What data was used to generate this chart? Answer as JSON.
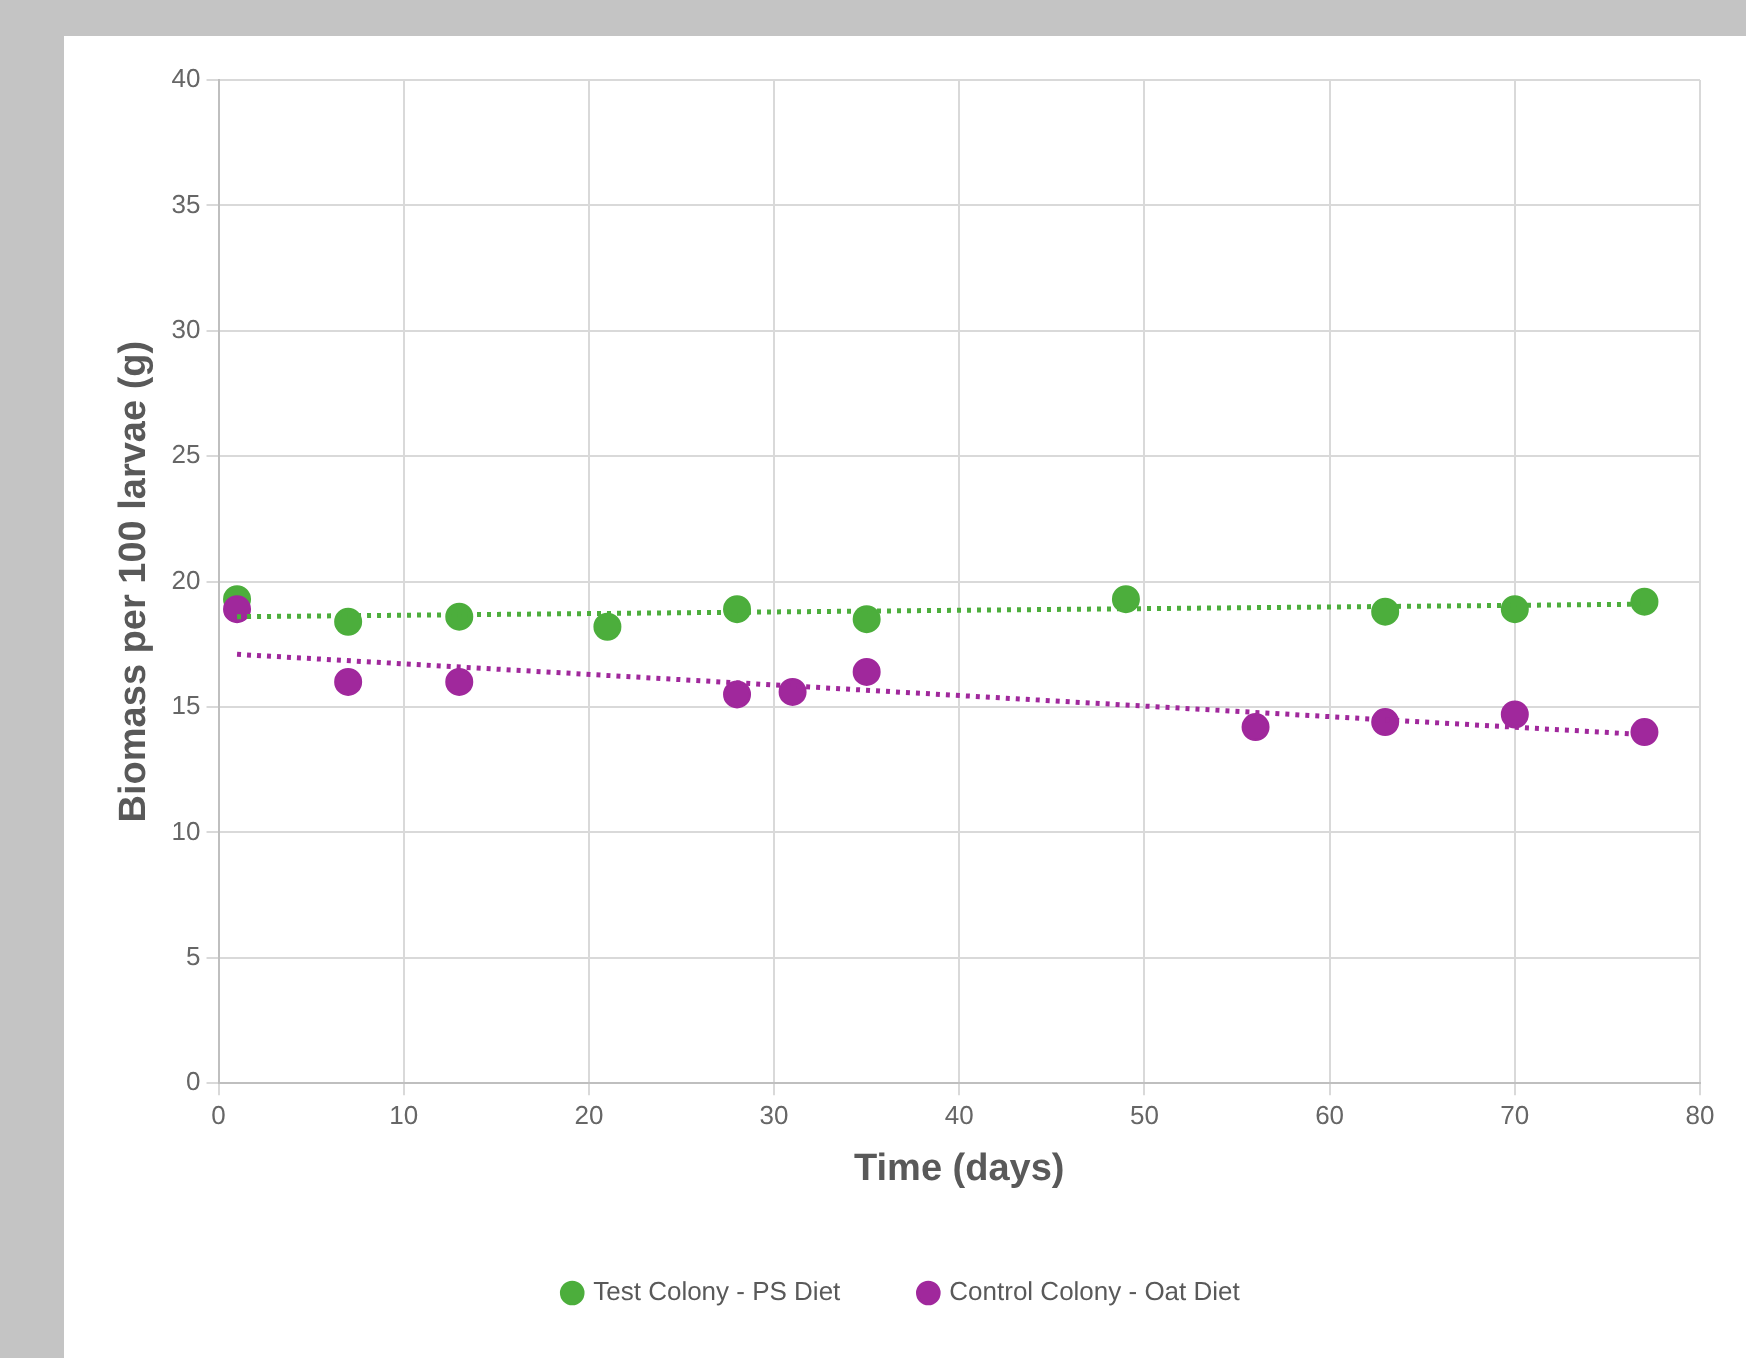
{
  "chart_data": {
    "type": "scatter",
    "xlabel": "Time (days)",
    "ylabel": "Biomass per 100 larvae (g)",
    "xlim": [
      0,
      80
    ],
    "xticks": [
      0,
      10,
      20,
      30,
      40,
      50,
      60,
      70,
      80
    ],
    "ylim": [
      0,
      40
    ],
    "yticks": [
      0,
      5,
      10,
      15,
      20,
      25,
      30,
      35,
      40
    ],
    "grid": true,
    "legend": "bottom",
    "series": [
      {
        "name": "Test Colony - PS Diet",
        "marker": "circle",
        "color": "#4cae3c",
        "x": [
          1,
          7,
          13,
          21,
          28,
          35,
          49,
          63,
          70,
          77
        ],
        "values": [
          19.3,
          18.4,
          18.6,
          18.2,
          18.9,
          18.5,
          19.3,
          18.8,
          18.9,
          19.2
        ]
      },
      {
        "name": "Control Colony - Oat Diet",
        "marker": "circle",
        "color": "#a0289c",
        "x": [
          1,
          7,
          13,
          28,
          31,
          35,
          56,
          63,
          70,
          77
        ],
        "values": [
          18.9,
          16.0,
          16.0,
          15.5,
          15.6,
          16.4,
          14.2,
          14.4,
          14.7,
          14.0
        ]
      },
      {
        "type": "line",
        "marker": "none",
        "line_style": "dotted",
        "color": "#4cae3c",
        "x": [
          1,
          77
        ],
        "values": [
          18.6,
          19.1
        ]
      },
      {
        "type": "line",
        "marker": "none",
        "line_style": "dotted",
        "color": "#a0289c",
        "x": [
          1,
          77
        ],
        "values": [
          17.1,
          13.9
        ]
      }
    ]
  }
}
